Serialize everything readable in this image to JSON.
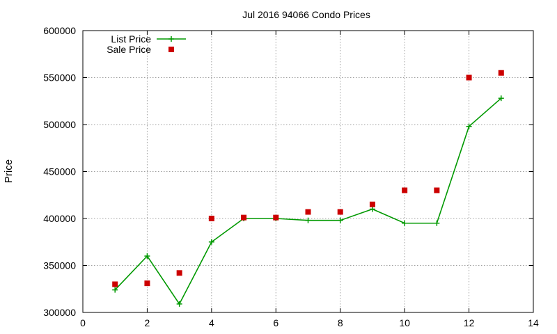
{
  "chart_data": {
    "type": "line",
    "title": "Jul 2016 94066 Condo Prices",
    "xlabel": "",
    "ylabel": "Price",
    "xlim": [
      0,
      14
    ],
    "ylim": [
      300000,
      600000
    ],
    "xticks": [
      0,
      2,
      4,
      6,
      8,
      10,
      12,
      14
    ],
    "yticks": [
      300000,
      350000,
      400000,
      450000,
      500000,
      550000,
      600000
    ],
    "grid": true,
    "legend_position": "top-left",
    "series": [
      {
        "name": "List Price",
        "style": "line+cross",
        "color": "#009900",
        "x": [
          1,
          2,
          3,
          4,
          5,
          6,
          7,
          8,
          9,
          10,
          11,
          12,
          13
        ],
        "y": [
          324000,
          360000,
          309000,
          375000,
          400000,
          400000,
          398000,
          398000,
          410000,
          395000,
          395000,
          498000,
          528000
        ]
      },
      {
        "name": "Sale Price",
        "style": "square-points",
        "color": "#cc0000",
        "x": [
          1,
          2,
          3,
          4,
          5,
          6,
          7,
          8,
          9,
          10,
          11,
          12,
          13
        ],
        "y": [
          330000,
          331000,
          342000,
          400000,
          401000,
          401000,
          407000,
          407000,
          415000,
          430000,
          430000,
          550000,
          555000
        ]
      }
    ]
  }
}
